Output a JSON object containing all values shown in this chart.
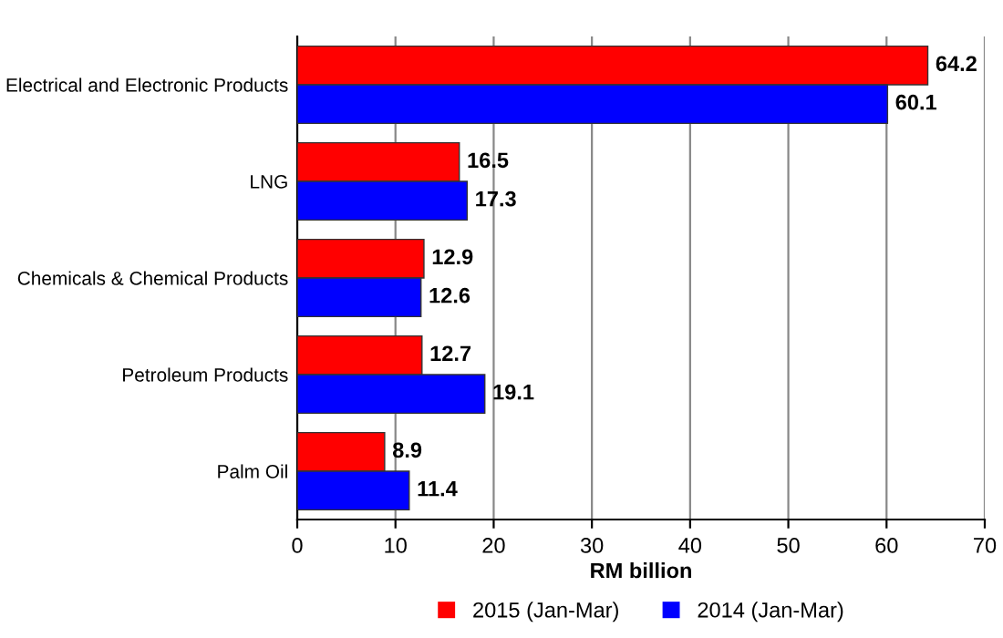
{
  "chart_data": {
    "type": "bar",
    "orientation": "horizontal",
    "xlabel": "RM billion",
    "categories": [
      "Electrical and Electronic Products",
      "LNG",
      "Chemicals & Chemical Products",
      "Petroleum Products",
      "Palm Oil"
    ],
    "series": [
      {
        "name": "2015 (Jan-Mar)",
        "color": "#ff0000",
        "values": [
          64.2,
          16.5,
          12.9,
          12.7,
          8.9
        ]
      },
      {
        "name": "2014 (Jan-Mar)",
        "color": "#0000ff",
        "values": [
          60.1,
          17.3,
          12.6,
          19.1,
          11.4
        ]
      }
    ],
    "xlim": [
      0,
      70
    ],
    "xticks": [
      0,
      10,
      20,
      30,
      40,
      50,
      60,
      70
    ],
    "grid": "x",
    "legend": "bottom",
    "data_labels": true
  }
}
